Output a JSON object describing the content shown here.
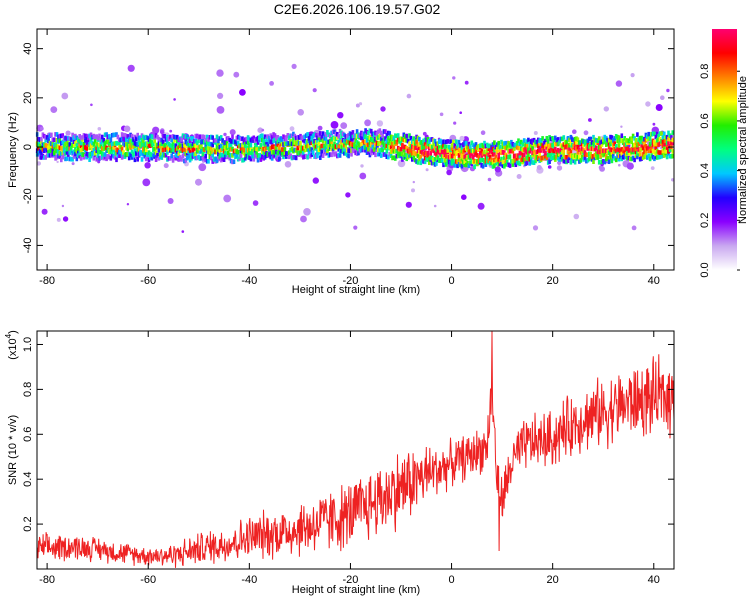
{
  "title": "C2E6.2026.106.19.57.G02",
  "chart_data": [
    {
      "type": "heatmap",
      "name": "spectrogram",
      "xlabel": "Height of straight line (km)",
      "ylabel": "Frequency (Hz)",
      "xlim": [
        -82,
        44
      ],
      "ylim": [
        -50,
        48
      ],
      "xticks": [
        -80,
        -60,
        -40,
        -20,
        0,
        20,
        40
      ],
      "yticks": [
        -40,
        -20,
        0,
        20,
        40
      ],
      "colorbar": {
        "label": "Normalized spectral amplitude",
        "range": [
          0,
          0.97
        ],
        "ticks": [
          0.0,
          0.2,
          0.4,
          0.6,
          0.8
        ],
        "tick_labels": [
          "0.0",
          "0.2",
          "0.4",
          "0.6",
          "0.8"
        ],
        "colors": [
          "#ffffff",
          "#c9a8f0",
          "#8a00ff",
          "#2200ff",
          "#00c8ff",
          "#00ff80",
          "#22ee00",
          "#ffff00",
          "#ff8000",
          "#ff0000",
          "#ff0070"
        ]
      },
      "band": {
        "center_hz": [
          [
            -82,
            0
          ],
          [
            -60,
            0
          ],
          [
            -45,
            -1
          ],
          [
            -30,
            0.5
          ],
          [
            -15,
            2
          ],
          [
            -10,
            0
          ],
          [
            0,
            -3
          ],
          [
            10,
            -3
          ],
          [
            20,
            -1
          ],
          [
            30,
            -1
          ],
          [
            44,
            1
          ]
        ],
        "half_width_hz": 4
      }
    },
    {
      "type": "line",
      "name": "snr",
      "xlabel": "Height of straight line (km)",
      "ylabel": "SNR (10 * v/v)",
      "scale_label": "(x10",
      "scale_exp": "4",
      "scale_close": ")",
      "xlim": [
        -82,
        44
      ],
      "ylim": [
        0,
        1.06
      ],
      "xticks": [
        -80,
        -60,
        -40,
        -20,
        0,
        20,
        40
      ],
      "yticks": [
        0.2,
        0.4,
        0.6,
        0.8,
        1.0
      ],
      "ytick_labels": [
        "0.2",
        "0.4",
        "0.6",
        "0.8",
        "1.0"
      ],
      "color": "#ee2222",
      "baseline": {
        "x": [
          -82,
          -75,
          -70,
          -65,
          -60,
          -55,
          -50,
          -45,
          -40,
          -30,
          -20,
          -12,
          -5,
          0,
          5,
          7,
          8,
          9,
          10,
          12,
          15,
          20,
          25,
          30,
          35,
          40,
          44
        ],
        "y": [
          0.09,
          0.1,
          0.09,
          0.07,
          0.06,
          0.06,
          0.09,
          0.11,
          0.14,
          0.18,
          0.24,
          0.34,
          0.42,
          0.47,
          0.52,
          0.55,
          0.8,
          0.4,
          0.3,
          0.48,
          0.56,
          0.58,
          0.66,
          0.7,
          0.74,
          0.76,
          0.77
        ]
      },
      "noise": {
        "x": [
          -82,
          -60,
          -40,
          -20,
          -10,
          0,
          10,
          20,
          30,
          44
        ],
        "amplitude": [
          0.06,
          0.04,
          0.09,
          0.14,
          0.16,
          0.09,
          0.1,
          0.12,
          0.14,
          0.16
        ]
      },
      "spikes": [
        {
          "x": 8.0,
          "y": 1.06
        },
        {
          "x": 9.4,
          "y": 0.08
        },
        {
          "x": 7.4,
          "y": 0.6
        }
      ]
    }
  ]
}
